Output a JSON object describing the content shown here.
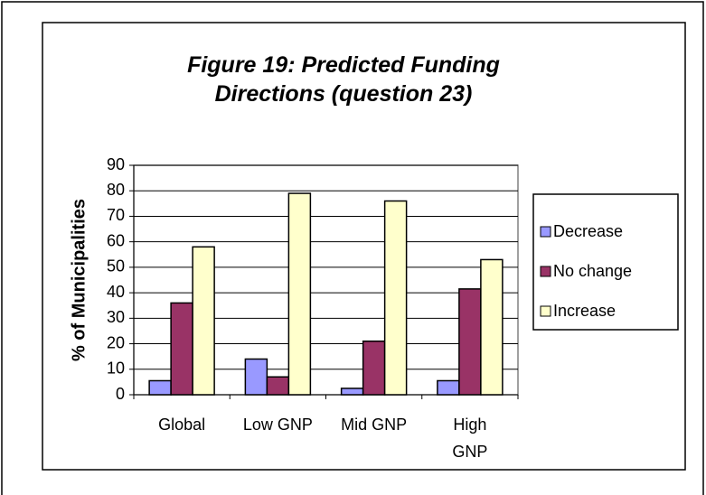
{
  "chart_data": {
    "type": "bar",
    "title": "Figure 19: Predicted Funding Directions (question 23)",
    "y_label": "% of Municipalities",
    "categories": [
      "Global",
      "Low GNP",
      "Mid GNP",
      "High GNP"
    ],
    "series": [
      {
        "name": "Decrease",
        "color": "#9999ff",
        "values": [
          5.5,
          14,
          2.5,
          5.5
        ]
      },
      {
        "name": "No change",
        "color": "#993366",
        "values": [
          36,
          7,
          21,
          41.5
        ]
      },
      {
        "name": "Increase",
        "color": "#ffffcc",
        "values": [
          58,
          79,
          76,
          53
        ]
      }
    ],
    "ylim": [
      0,
      90
    ],
    "yticks": [
      0,
      10,
      20,
      30,
      40,
      50,
      60,
      70,
      80,
      90
    ],
    "grid": true,
    "legend": "right"
  }
}
